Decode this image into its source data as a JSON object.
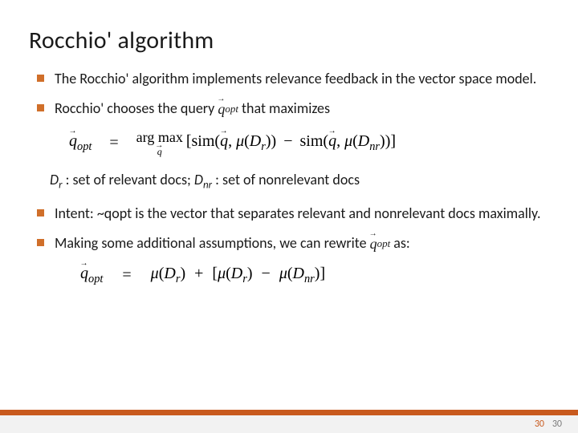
{
  "title": "Rocchio' algorithm",
  "bullets": {
    "b1": "The Rocchio' algorithm implements relevance feedback in the vector space model.",
    "b2_pre": "Rocchio' chooses the query ",
    "b2_post": " that maximizes",
    "b3": "Intent: ~qopt is the vector that separates relevant and nonrelevant docs maximally.",
    "b4_pre": "Making some additional assumptions, we can rewrite ",
    "b4_post": " as:"
  },
  "defs": {
    "dr_label": "D",
    "dr_sub": "r",
    "dr_text": " : set of relevant docs; ",
    "dnr_label": "D",
    "dnr_sub": "nr",
    "dnr_text": " : set of nonrelevant docs"
  },
  "math": {
    "q": "q",
    "opt": "opt",
    "argmax": "arg max",
    "sim": "sim",
    "mu": "μ",
    "Dr": "D",
    "r": "r",
    "Dnr": "D",
    "nr": "nr",
    "eq": "=",
    "vec_arrow": "→",
    "lbrack": "[",
    "rbrack": "]",
    "lparen": "(",
    "rparen": ")",
    "minus": "−",
    "plus": "+",
    "comma": ", "
  },
  "page": {
    "num1": "30",
    "num2": "30"
  },
  "colors": {
    "accent": "#c85a1e",
    "bullet": "#d06f2a",
    "text": "#1a1a1a",
    "footer_bg": "#f2f2f2",
    "page_gray": "#7a7a7a"
  }
}
